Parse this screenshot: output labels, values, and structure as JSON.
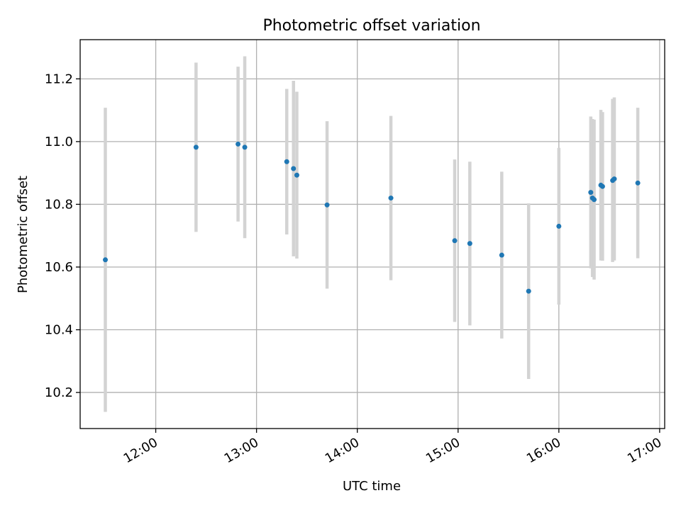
{
  "chart_data": {
    "type": "scatter",
    "title": "Photometric offset variation",
    "xlabel": "UTC time",
    "ylabel": "Photometric offset",
    "xlim": [
      "11:15",
      "17:03"
    ],
    "ylim": [
      10.085,
      11.325
    ],
    "xticks": [
      "12:00",
      "13:00",
      "14:00",
      "15:00",
      "16:00",
      "17:00"
    ],
    "yticks": [
      10.2,
      10.4,
      10.6,
      10.8,
      11.0,
      11.2
    ],
    "grid": true,
    "colors": {
      "points": "#1f77b4",
      "errorbars": "#d3d3d3",
      "grid": "#b0b0b0"
    },
    "points": [
      {
        "x": "11:30",
        "y": 10.623,
        "err": 0.485
      },
      {
        "x": "12:24",
        "y": 10.982,
        "err": 0.27
      },
      {
        "x": "12:49",
        "y": 10.992,
        "err": 0.247
      },
      {
        "x": "12:53",
        "y": 10.982,
        "err": 0.29
      },
      {
        "x": "13:18",
        "y": 10.936,
        "err": 0.232
      },
      {
        "x": "13:22",
        "y": 10.914,
        "err": 0.28
      },
      {
        "x": "13:24",
        "y": 10.893,
        "err": 0.266
      },
      {
        "x": "13:42",
        "y": 10.798,
        "err": 0.267
      },
      {
        "x": "14:20",
        "y": 10.82,
        "err": 0.262
      },
      {
        "x": "14:58",
        "y": 10.684,
        "err": 0.259
      },
      {
        "x": "15:07",
        "y": 10.675,
        "err": 0.261
      },
      {
        "x": "15:26",
        "y": 10.638,
        "err": 0.266
      },
      {
        "x": "15:42",
        "y": 10.523,
        "err": 0.28
      },
      {
        "x": "16:00",
        "y": 10.73,
        "err": 0.25
      },
      {
        "x": "16:19",
        "y": 10.838,
        "err": 0.242
      },
      {
        "x": "16:20",
        "y": 10.82,
        "err": 0.252
      },
      {
        "x": "16:21",
        "y": 10.815,
        "err": 0.255
      },
      {
        "x": "16:25",
        "y": 10.861,
        "err": 0.24
      },
      {
        "x": "16:26",
        "y": 10.857,
        "err": 0.237
      },
      {
        "x": "16:32",
        "y": 10.876,
        "err": 0.26
      },
      {
        "x": "16:33",
        "y": 10.881,
        "err": 0.26
      },
      {
        "x": "16:47",
        "y": 10.868,
        "err": 0.24
      }
    ]
  }
}
